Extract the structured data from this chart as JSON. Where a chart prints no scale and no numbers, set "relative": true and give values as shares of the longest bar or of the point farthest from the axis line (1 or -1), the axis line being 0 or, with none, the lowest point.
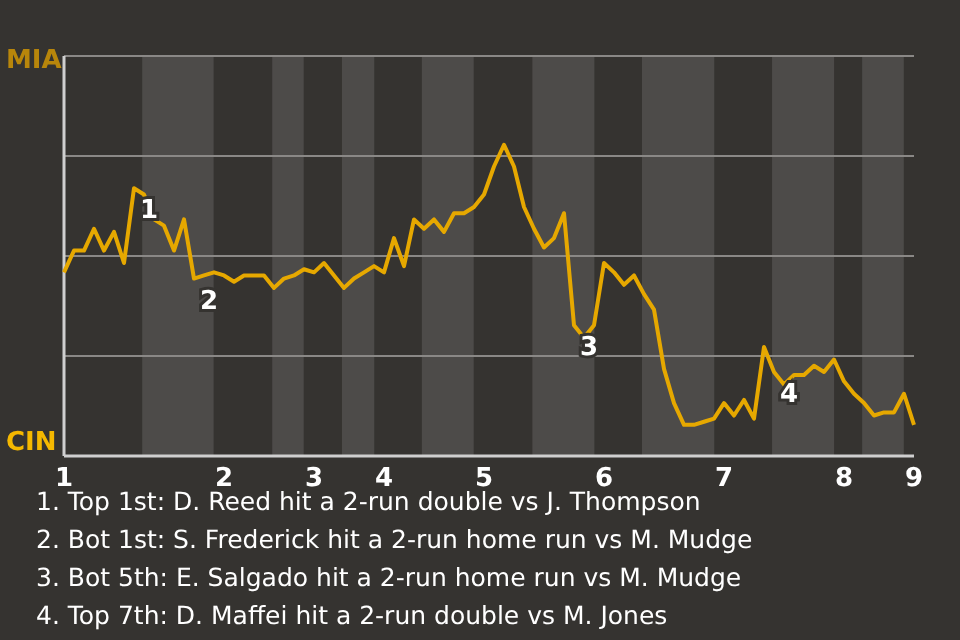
{
  "chart_data": {
    "type": "line",
    "relative": true,
    "categories": [
      "1",
      null,
      null,
      null,
      null,
      null,
      null,
      null,
      null,
      null,
      null,
      null,
      null,
      null,
      null,
      null,
      "2",
      null,
      null,
      null,
      null,
      null,
      null,
      null,
      null,
      "3",
      null,
      null,
      null,
      null,
      null,
      null,
      "4",
      null,
      null,
      null,
      null,
      null,
      null,
      null,
      null,
      null,
      "5",
      null,
      null,
      null,
      null,
      null,
      null,
      null,
      null,
      null,
      null,
      null,
      "6",
      null,
      null,
      null,
      null,
      null,
      null,
      null,
      null,
      null,
      null,
      null,
      "7",
      null,
      null,
      null,
      null,
      null,
      null,
      null,
      null,
      null,
      null,
      null,
      "8",
      null,
      null,
      null,
      null,
      null,
      null,
      "9"
    ],
    "series": [
      {
        "color": "#e6a800",
        "values": [
          0.59,
          0.66,
          0.66,
          0.73,
          0.66,
          0.72,
          0.62,
          0.86,
          0.84,
          0.76,
          0.74,
          0.66,
          0.76,
          0.57,
          0.58,
          0.59,
          0.58,
          0.56,
          0.58,
          0.58,
          0.58,
          0.54,
          0.57,
          0.58,
          0.6,
          0.59,
          0.62,
          0.58,
          0.54,
          0.57,
          0.59,
          0.61,
          0.59,
          0.7,
          0.61,
          0.76,
          0.73,
          0.76,
          0.72,
          0.78,
          0.78,
          0.8,
          0.84,
          0.93,
          1,
          0.93,
          0.8,
          0.73,
          0.67,
          0.7,
          0.78,
          0.42,
          0.38,
          0.42,
          0.62,
          0.59,
          0.55,
          0.58,
          0.52,
          0.47,
          0.28,
          0.17,
          0.1,
          0.1,
          0.11,
          0.12,
          0.17,
          0.13,
          0.18,
          0.12,
          0.35,
          0.27,
          0.23,
          0.26,
          0.26,
          0.29,
          0.27,
          0.31,
          0.24,
          0.2,
          0.17,
          0.13,
          0.14,
          0.14,
          0.2,
          0.1
        ]
      }
    ],
    "grid": "y",
    "marker": "none",
    "annotations": [
      {
        "text": "1",
        "y": 0.86
      },
      {
        "text": "2",
        "y": 0.57
      },
      {
        "text": "3",
        "y": 0.42
      },
      {
        "text": "4",
        "y": 0.27
      },
      "MIA",
      "CIN",
      "1. Top 1st: D. Reed hit a 2-run double vs J. Thompson",
      "2. Bot 1st: S. Frederick hit a 2-run home run vs M. Mudge",
      "3. Bot 5th: E. Salgado hit a 2-run home run vs M. Mudge",
      "4. Top 7th: D. Maffei hit a 2-run double vs M. Jones"
    ]
  }
}
